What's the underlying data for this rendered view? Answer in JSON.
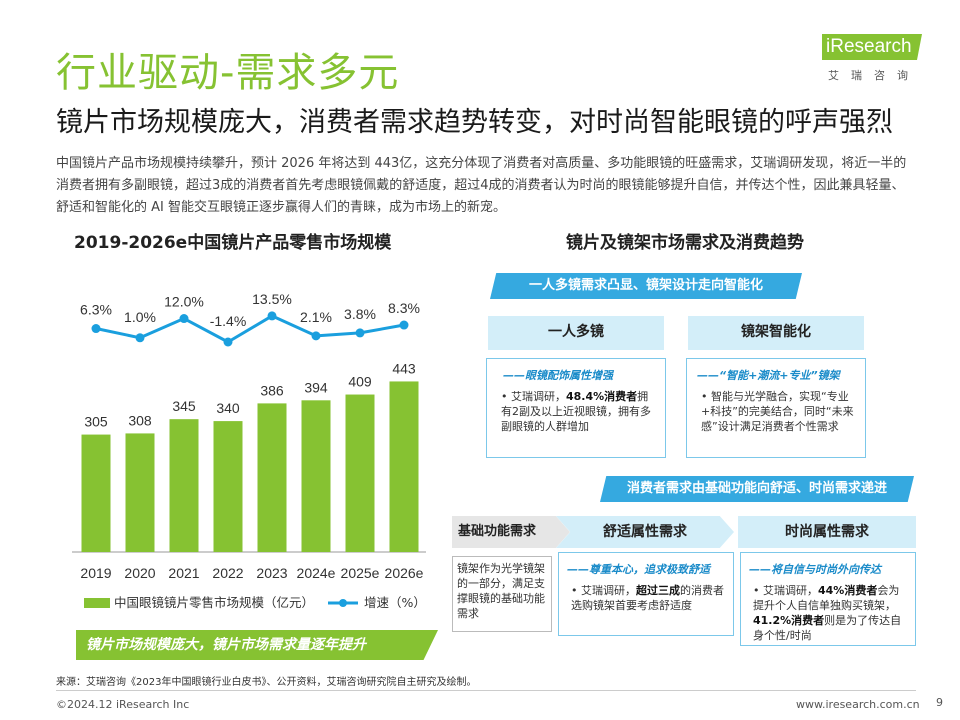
{
  "header": {
    "title": "行业驱动-需求多元",
    "subtitle": "镜片市场规模庞大，消费者需求趋势转变，对时尚智能眼镜的呼声强烈",
    "logo_text": "iResearch",
    "logo_sub": "艾瑞咨询"
  },
  "intro": "中国镜片产品市场规模持续攀升，预计 2026 年将达到 443亿，这充分体现了消费者对高质量、多功能眼镜的旺盛需求，艾瑞调研发现，将近一半的消费者拥有多副眼镜，超过3成的消费者首先考虑眼镜佩戴的舒适度，超过4成的消费者认为时尚的眼镜能够提升自信，并传达个性，因此兼具轻量、舒适和智能化的 AI 智能交互眼镜正逐步赢得人们的青睐，成为市场上的新宠。",
  "chart_data": {
    "type": "bar",
    "title": "2019-2026e中国镜片产品零售市场规模",
    "categories": [
      "2019",
      "2020",
      "2021",
      "2022",
      "2023",
      "2024e",
      "2025e",
      "2026e"
    ],
    "series": [
      {
        "name": "中国眼镜镜片零售市场规模（亿元）",
        "type": "bar",
        "values": [
          305,
          308,
          345,
          340,
          386,
          394,
          409,
          443
        ],
        "labels": [
          "305",
          "308",
          "345",
          "340",
          "386",
          "394",
          "409",
          "443"
        ],
        "color": "#86c232"
      },
      {
        "name": "增速（%）",
        "type": "line",
        "values": [
          6.3,
          1.0,
          12.0,
          -1.4,
          13.5,
          2.1,
          3.8,
          8.3
        ],
        "labels": [
          "6.3%",
          "1.0%",
          "12.0%",
          "-1.4%",
          "13.5%",
          "2.1%",
          "3.8%",
          "8.3%"
        ],
        "color": "#1a9fde"
      }
    ],
    "legend_position": "bottom"
  },
  "left_banner": "镜片市场规模庞大，镜片市场需求量逐年提升",
  "right_panel": {
    "title": "镜片及镜架市场需求及消费趋势",
    "banner_top": "一人多镜需求凸显、镜架设计走向智能化",
    "card_multi": {
      "head": "一人多镜",
      "sub": "——眼镜配饰属性增强",
      "body_prefix": "艾瑞调研，",
      "body_bold": "48.4%消费者",
      "body_suffix": "拥有2副及以上近视眼镜，拥有多副眼镜的人群增加"
    },
    "card_smart": {
      "head": "镜架智能化",
      "sub": "——“智能+潮流+专业”镜架",
      "body": "智能与光学融合，实现“专业+科技”的完美结合，同时“未来感”设计满足消费者个性需求"
    },
    "banner_mid": "消费者需求由基础功能向舒适、时尚需求递进",
    "base": {
      "head": "基础功能需求",
      "body": "镜架作为光学镜架的一部分，满足支撑眼镜的基础功能需求"
    },
    "comfort": {
      "head": "舒适属性需求",
      "sub": "——尊重本心，追求极致舒适",
      "body_prefix": "艾瑞调研，",
      "body_bold": "超过三成",
      "body_suffix": "的消费者选购镜架首要考虑舒适度"
    },
    "fashion": {
      "head": "时尚属性需求",
      "sub": "——将自信与时尚外向传达",
      "body_prefix": "艾瑞调研，",
      "body_bold1": "44%消费者",
      "body_mid": "会为提升个人自信单独购买镜架，",
      "body_bold2": "41.2%消费者",
      "body_suffix": "则是为了传达自身个性/时尚"
    }
  },
  "footer": {
    "source": "来源：艾瑞咨询《2023年中国眼镜行业白皮书》、公开资料，艾瑞咨询研究院自主研究及绘制。",
    "copyright": "©2024.12 iResearch Inc",
    "website": "www.iresearch.com.cn",
    "page": "9"
  }
}
